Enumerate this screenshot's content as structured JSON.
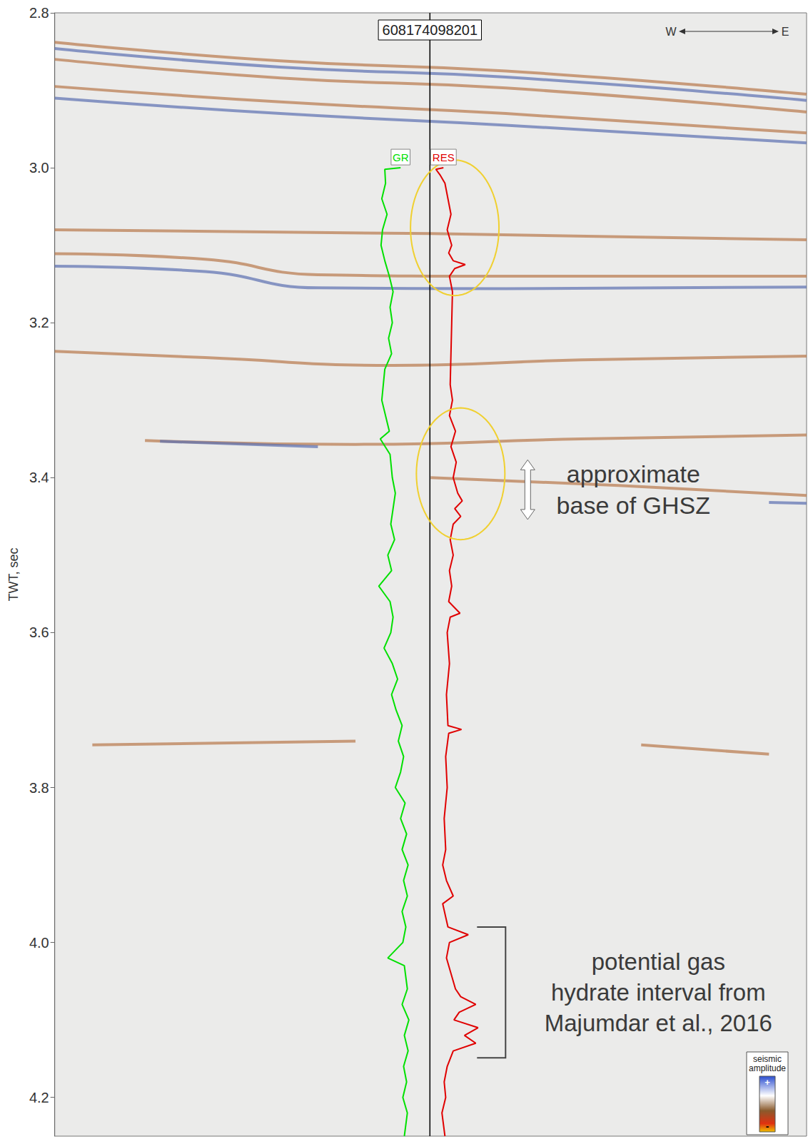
{
  "chart_data": {
    "type": "line",
    "title": "608174098201",
    "ylabel": "TWT, sec",
    "ylim": [
      2.8,
      4.25
    ],
    "yticks": [
      2.8,
      {
        "value": 3,
        "label": "3.0"
      },
      3.2,
      3.4,
      3.6,
      3.8,
      {
        "value": 4,
        "label": "4.0"
      },
      4.2
    ],
    "xlim": [
      0,
      100
    ],
    "tick_labels": "y",
    "grid": false,
    "well_x": 49.9,
    "series": [
      {
        "name": "GR",
        "color": "#00e000",
        "x": [
          46.0,
          43.9,
          44.0,
          43.5,
          44.2,
          43.6,
          43.4,
          43.9,
          44.5,
          45.0,
          44.6,
          44.9,
          44.4,
          44.8,
          43.9,
          43.7,
          43.5,
          44.0,
          44.5,
          43.3,
          44.6,
          44.9,
          45.3,
          45.0,
          44.7,
          45.2,
          44.3,
          44.8,
          43.1,
          44.6,
          45.0,
          44.7,
          43.8,
          44.9,
          45.6,
          44.8,
          45.4,
          46.2,
          45.7,
          46.4,
          46.0,
          45.3,
          46.6,
          46.0,
          46.8,
          46.2,
          47.0,
          46.4,
          46.9,
          46.2,
          46.7,
          46.3,
          44.3,
          46.5,
          46.9,
          46.2,
          47.1,
          46.5,
          47.0,
          46.4,
          46.8,
          46.3,
          46.9,
          46.5
        ],
        "values": [
          3.0,
          3.002,
          3.02,
          3.04,
          3.06,
          3.08,
          3.1,
          3.12,
          3.14,
          3.16,
          3.18,
          3.2,
          3.22,
          3.24,
          3.26,
          3.28,
          3.3,
          3.32,
          3.34,
          3.35,
          3.37,
          3.4,
          3.42,
          3.44,
          3.46,
          3.48,
          3.5,
          3.52,
          3.54,
          3.56,
          3.58,
          3.6,
          3.62,
          3.64,
          3.66,
          3.68,
          3.7,
          3.72,
          3.74,
          3.76,
          3.78,
          3.8,
          3.82,
          3.84,
          3.86,
          3.88,
          3.9,
          3.92,
          3.94,
          3.96,
          3.98,
          4.0,
          4.02,
          4.03,
          4.06,
          4.08,
          4.1,
          4.12,
          4.14,
          4.16,
          4.18,
          4.2,
          4.22,
          4.25
        ]
      },
      {
        "name": "RES",
        "color": "#e00000",
        "x": [
          51.7,
          50.7,
          51.3,
          51.9,
          52.3,
          52.7,
          52.2,
          52.8,
          52.4,
          53.0,
          54.6,
          53.2,
          52.5,
          52.9,
          52.8,
          52.7,
          52.6,
          52.9,
          52.5,
          53.3,
          52.7,
          53.4,
          53.0,
          53.6,
          54.2,
          53.2,
          54.0,
          53.0,
          52.6,
          53.0,
          52.5,
          52.8,
          52.4,
          53.9,
          52.6,
          52.2,
          52.5,
          52.1,
          52.3,
          54.1,
          52.4,
          52.0,
          52.2,
          51.8,
          52.0,
          51.6,
          52.1,
          53.0,
          51.6,
          52.3,
          55.0,
          52.5,
          52.1,
          52.7,
          53.3,
          54.0,
          56.0,
          53.8,
          53.1,
          56.3,
          54.5,
          56.0,
          53.0,
          52.2,
          51.8,
          52.0,
          51.5,
          51.9
        ],
        "values": [
          3.0,
          3.002,
          3.01,
          3.02,
          3.04,
          3.06,
          3.08,
          3.1,
          3.11,
          3.12,
          3.125,
          3.13,
          3.14,
          3.16,
          3.2,
          3.24,
          3.28,
          3.3,
          3.32,
          3.34,
          3.36,
          3.38,
          3.4,
          3.42,
          3.43,
          3.44,
          3.45,
          3.46,
          3.48,
          3.5,
          3.52,
          3.54,
          3.56,
          3.575,
          3.58,
          3.6,
          3.64,
          3.68,
          3.72,
          3.725,
          3.73,
          3.76,
          3.8,
          3.84,
          3.88,
          3.9,
          3.92,
          3.94,
          3.95,
          3.98,
          3.99,
          4.0,
          4.02,
          4.04,
          4.06,
          4.07,
          4.08,
          4.09,
          4.1,
          4.11,
          4.12,
          4.13,
          4.14,
          4.16,
          4.18,
          4.2,
          4.22,
          4.25
        ]
      }
    ],
    "reflectors": [
      {
        "color": "#b8784a",
        "x": [
          0,
          30,
          60,
          100
        ],
        "values": [
          2.838,
          2.862,
          2.875,
          2.905
        ]
      },
      {
        "color": "#5b6fb0",
        "x": [
          0,
          30,
          60,
          100
        ],
        "values": [
          2.846,
          2.87,
          2.883,
          2.913
        ]
      },
      {
        "color": "#b8784a",
        "x": [
          0,
          30,
          60,
          100
        ],
        "values": [
          2.86,
          2.884,
          2.897,
          2.928
        ]
      },
      {
        "color": "#b8784a",
        "x": [
          0,
          30,
          60,
          100
        ],
        "values": [
          2.895,
          2.915,
          2.93,
          2.955
        ]
      },
      {
        "color": "#5b6fb0",
        "x": [
          0,
          30,
          60,
          100
        ],
        "values": [
          2.91,
          2.93,
          2.945,
          2.968
        ]
      },
      {
        "color": "#b8784a",
        "x": [
          0,
          50,
          100
        ],
        "values": [
          3.08,
          3.085,
          3.093
        ]
      },
      {
        "color": "#b8784a",
        "x": [
          0,
          20,
          35,
          60,
          100
        ],
        "values": [
          3.111,
          3.118,
          3.138,
          3.14,
          3.14
        ]
      },
      {
        "color": "#5b6fb0",
        "x": [
          0,
          20,
          35,
          60,
          100
        ],
        "values": [
          3.127,
          3.134,
          3.155,
          3.156,
          3.154
        ]
      },
      {
        "color": "#b8784a",
        "x": [
          0,
          20,
          45,
          70,
          100
        ],
        "values": [
          3.237,
          3.245,
          3.255,
          3.248,
          3.243
        ]
      },
      {
        "color": "#b8784a",
        "x": [
          12,
          40,
          70,
          100
        ],
        "values": [
          3.352,
          3.357,
          3.35,
          3.345
        ]
      },
      {
        "color": "#5b6fb0",
        "x": [
          14,
          35
        ],
        "values": [
          3.353,
          3.36
        ]
      },
      {
        "color": "#b8784a",
        "x": [
          50,
          75,
          100
        ],
        "values": [
          3.4,
          3.41,
          3.423
        ]
      },
      {
        "color": "#5b6fb0",
        "x": [
          95,
          100
        ],
        "values": [
          3.432,
          3.433
        ]
      },
      {
        "color": "#b8784a",
        "x": [
          5,
          40
        ],
        "values": [
          3.745,
          3.74
        ]
      },
      {
        "color": "#b8784a",
        "x": [
          78,
          95
        ],
        "values": [
          3.745,
          3.757
        ]
      }
    ],
    "highlights": [
      {
        "series": "RES",
        "interval": [
          2.99,
          3.165
        ]
      },
      {
        "series": "RES",
        "interval": [
          3.31,
          3.48
        ]
      }
    ],
    "annotations": [
      {
        "text": [
          "approximate",
          "base of GHSZ"
        ],
        "interval": [
          3.377,
          3.454
        ],
        "marker": "arrow"
      },
      {
        "text": [
          "potential gas",
          "hydrate interval from",
          "Majumdar et al., 2016"
        ],
        "interval": [
          3.98,
          4.149
        ],
        "marker": "bracket"
      }
    ],
    "direction": [
      "W",
      "E"
    ],
    "colorbar": {
      "label": [
        "seismic",
        "amplitude"
      ],
      "ends": [
        "+",
        "-"
      ]
    }
  }
}
